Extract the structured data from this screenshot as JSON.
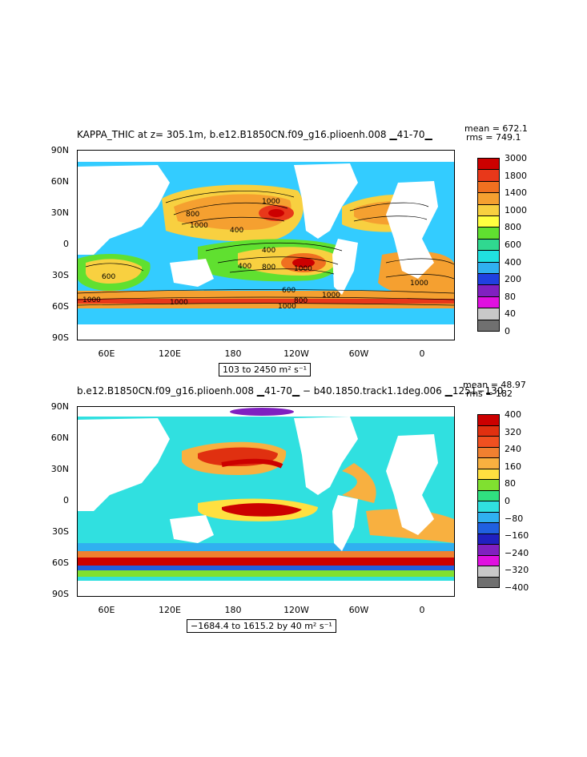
{
  "top": {
    "title": "KAPPA_THIC at z= 305.1m, b.e12.B1850CN.f09_g16.plioenh.008 ▁41-70▁",
    "mean": "mean = 672.1",
    "rms": "rms = 749.1",
    "range": "103 to 2450 m² s⁻¹",
    "colorbar_labels": [
      "3000",
      "1800",
      "1400",
      "1000",
      "800",
      "600",
      "400",
      "200",
      "80",
      "40",
      "0"
    ],
    "colorbar_colors": [
      "#cc0000",
      "#e8381a",
      "#f07020",
      "#f5a030",
      "#f8d040",
      "#ffff40",
      "#60e030",
      "#30d890",
      "#20e0e0",
      "#30b0f0",
      "#2040e0",
      "#8020c0",
      "#e010e0",
      "#c8c8c8",
      "#707070"
    ],
    "contour_labels": [
      "800",
      "1000",
      "1000",
      "400",
      "400",
      "1000",
      "1000",
      "600",
      "400",
      "800",
      "1000",
      "600",
      "800",
      "1000",
      "1000",
      "1000"
    ],
    "land_color": "#ffffff",
    "shelf_color": "#33ccff"
  },
  "bottom": {
    "title": "b.e12.B1850CN.f09_g16.plioenh.008 ▁41-70▁ − b40.1850.track1.1deg.006 ▁1251−130",
    "mean": "mean = 48.97",
    "rms": "rms = 182",
    "range": "−1684.4 to 1615.2 by 40 m² s⁻¹",
    "colorbar_labels": [
      "400",
      "320",
      "240",
      "160",
      "80",
      "0",
      "−80",
      "−160",
      "−240",
      "−320",
      "−400"
    ],
    "colorbar_colors": [
      "#cc0000",
      "#e03010",
      "#f05020",
      "#f08030",
      "#f8b040",
      "#ffe040",
      "#80e030",
      "#30e080",
      "#30e0e0",
      "#30b0f0",
      "#2060e0",
      "#2020c0",
      "#8020c0",
      "#e010e0",
      "#c8c8c8",
      "#707070"
    ]
  },
  "lat_labels": [
    "90N",
    "60N",
    "30N",
    "0",
    "30S",
    "60S",
    "90S"
  ],
  "lon_labels": [
    "60E",
    "120E",
    "180",
    "120W",
    "60W",
    "0"
  ]
}
